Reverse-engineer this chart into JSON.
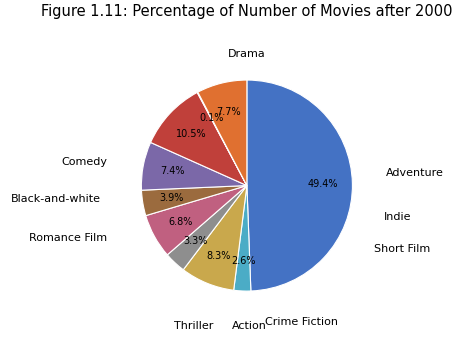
{
  "title": "Figure 1.11: Percentage of Number of Movies after 2000",
  "labels": [
    "Drama",
    "Adventure",
    "Indie",
    "Short Film",
    "Crime Fiction",
    "Action",
    "Thriller",
    "Romance Film",
    "Black-and-white",
    "Comedy"
  ],
  "values": [
    49.4,
    2.6,
    8.3,
    3.3,
    6.8,
    3.9,
    7.4,
    10.5,
    0.1,
    7.7
  ],
  "colors": [
    "#4472C4",
    "#4BACC6",
    "#C9A84C",
    "#8E8E8E",
    "#C06080",
    "#9B6B3E",
    "#7B68A8",
    "#C0403A",
    "#D4874E",
    "#E07030"
  ],
  "startangle": 90,
  "title_fontsize": 10.5,
  "label_fontsize": 8,
  "pct_fontsize": 7
}
